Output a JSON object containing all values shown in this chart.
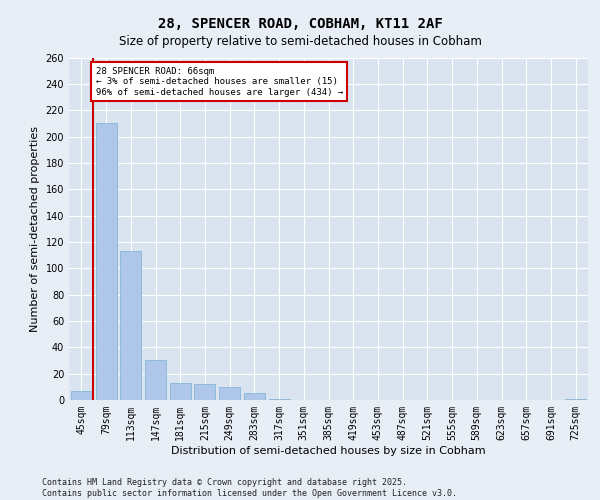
{
  "title_line1": "28, SPENCER ROAD, COBHAM, KT11 2AF",
  "title_line2": "Size of property relative to semi-detached houses in Cobham",
  "xlabel": "Distribution of semi-detached houses by size in Cobham",
  "ylabel": "Number of semi-detached properties",
  "categories": [
    "45sqm",
    "79sqm",
    "113sqm",
    "147sqm",
    "181sqm",
    "215sqm",
    "249sqm",
    "283sqm",
    "317sqm",
    "351sqm",
    "385sqm",
    "419sqm",
    "453sqm",
    "487sqm",
    "521sqm",
    "555sqm",
    "589sqm",
    "623sqm",
    "657sqm",
    "691sqm",
    "725sqm"
  ],
  "values": [
    7,
    210,
    113,
    30,
    13,
    12,
    10,
    5,
    1,
    0,
    0,
    0,
    0,
    0,
    0,
    0,
    0,
    0,
    0,
    0,
    1
  ],
  "bar_color": "#aec6e8",
  "bar_edge_color": "#7bafd4",
  "vline_color": "#cc0000",
  "annotation_box_edge_color": "#cc0000",
  "annotation_title": "28 SPENCER ROAD: 66sqm",
  "annotation_line1": "← 3% of semi-detached houses are smaller (15)",
  "annotation_line2": "96% of semi-detached houses are larger (434) →",
  "ylim": [
    0,
    260
  ],
  "yticks": [
    0,
    20,
    40,
    60,
    80,
    100,
    120,
    140,
    160,
    180,
    200,
    220,
    240,
    260
  ],
  "bg_color": "#e8eef5",
  "plot_bg_color": "#d9e4f0",
  "grid_color": "#ffffff",
  "title_fontsize": 10,
  "subtitle_fontsize": 8.5,
  "axis_label_fontsize": 8,
  "tick_fontsize": 7,
  "footer_fontsize": 6,
  "footer": "Contains HM Land Registry data © Crown copyright and database right 2025.\nContains public sector information licensed under the Open Government Licence v3.0."
}
